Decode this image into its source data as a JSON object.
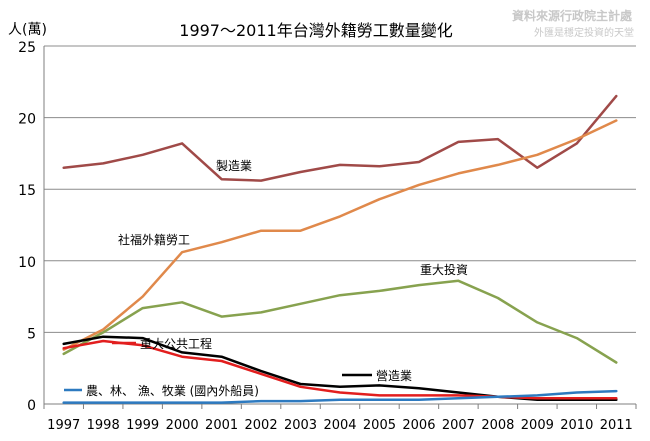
{
  "source": {
    "line1": "資料來源行政院主計處",
    "line2": "外匯是穩定投資的天堂"
  },
  "colors": {
    "grid": "#8c8c8c",
    "axis": "#7f7f7f",
    "watermark": "#c8c8c8"
  },
  "chart_data": {
    "type": "line",
    "title": "1997～2011年台灣外籍勞工數量變化",
    "ylabel": "人(萬)",
    "xlabel": "",
    "ylim": [
      0,
      25
    ],
    "yticks": [
      0,
      5,
      10,
      15,
      20,
      25
    ],
    "grid": "horizontal",
    "x": [
      "1997",
      "1998",
      "1999",
      "2000",
      "2001",
      "2002",
      "2003",
      "2004",
      "2005",
      "2006",
      "2007",
      "2008",
      "2009",
      "2010",
      "2011"
    ],
    "series": [
      {
        "name": "製造業",
        "color": "#a04a48",
        "values": [
          16.5,
          16.8,
          17.4,
          18.2,
          15.7,
          15.6,
          16.2,
          16.7,
          16.6,
          16.9,
          18.3,
          18.5,
          16.5,
          18.2,
          21.5
        ]
      },
      {
        "name": "社福外籍勞工",
        "color": "#e0894b",
        "values": [
          3.8,
          5.2,
          7.5,
          10.6,
          11.3,
          12.1,
          12.1,
          13.1,
          14.3,
          15.3,
          16.1,
          16.7,
          17.4,
          18.5,
          19.8
        ]
      },
      {
        "name": "重大投資",
        "color": "#87a24f",
        "values": [
          3.5,
          5.0,
          6.7,
          7.1,
          6.1,
          6.4,
          7.0,
          7.6,
          7.9,
          8.3,
          8.6,
          7.4,
          5.7,
          4.6,
          2.9
        ]
      },
      {
        "name": "營造業",
        "color": "#000000",
        "values": [
          4.2,
          4.7,
          4.6,
          3.6,
          3.3,
          2.3,
          1.4,
          1.2,
          1.3,
          1.1,
          0.8,
          0.5,
          0.3,
          0.3,
          0.3
        ]
      },
      {
        "name": "重大公共工程",
        "color": "#e21e1e",
        "values": [
          3.9,
          4.4,
          4.1,
          3.3,
          3.0,
          2.1,
          1.2,
          0.8,
          0.6,
          0.6,
          0.6,
          0.5,
          0.4,
          0.4,
          0.4
        ]
      },
      {
        "name": "農、林、 漁、牧業 (國內外船員)",
        "color": "#2d7ac0",
        "values": [
          0.1,
          0.1,
          0.1,
          0.1,
          0.1,
          0.2,
          0.2,
          0.3,
          0.3,
          0.3,
          0.4,
          0.5,
          0.6,
          0.8,
          0.9
        ]
      }
    ]
  }
}
